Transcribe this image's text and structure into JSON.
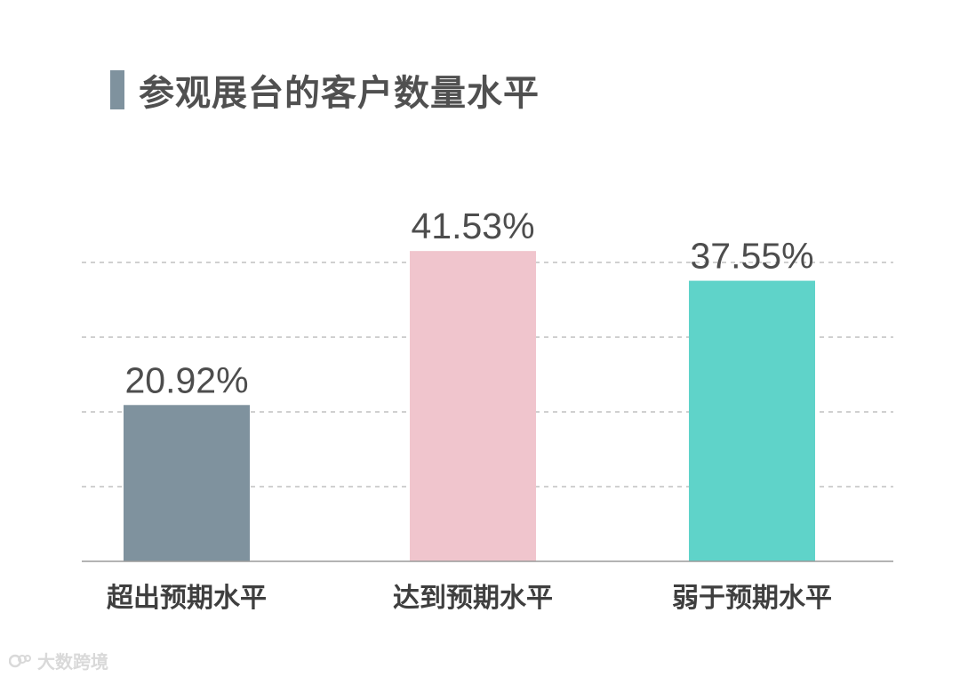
{
  "title": "参观展台的客户数量水平",
  "watermark": {
    "text": "大数跨境",
    "icon": "logo-icon"
  },
  "chart_data": {
    "type": "bar",
    "title": "参观展台的客户数量水平",
    "xlabel": "",
    "ylabel": "",
    "categories": [
      "超出预期水平",
      "达到预期水平",
      "弱于预期水平"
    ],
    "values": [
      20.92,
      41.53,
      37.55
    ],
    "value_labels": [
      "20.92%",
      "41.53%",
      "37.55%"
    ],
    "colors": [
      "#7f929e",
      "#f0c5cd",
      "#5fd3c9"
    ],
    "ylim": [
      0,
      50
    ],
    "gridlines": [
      10,
      20,
      30,
      40
    ],
    "grid": true,
    "legend": "none"
  }
}
